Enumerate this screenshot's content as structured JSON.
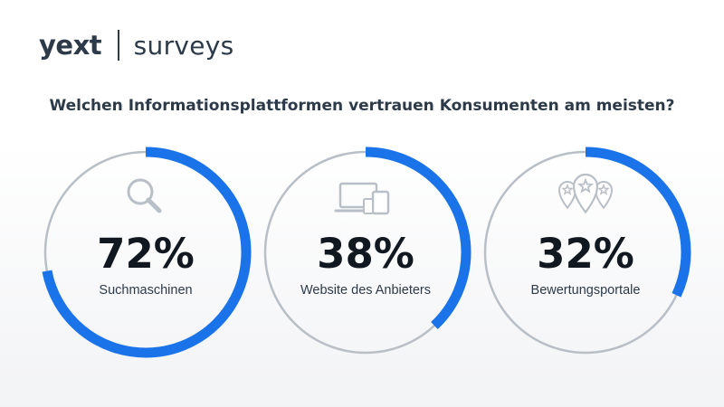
{
  "brand": {
    "logo": "yext",
    "product": "surveys"
  },
  "question": "Welchen Informationsplattformen vertrauen Konsumenten am meisten?",
  "colors": {
    "accent": "#1a73e8",
    "track": "#b9bfc7",
    "text": "#2c3a49"
  },
  "chart_data": {
    "type": "pie",
    "title": "Welchen Informationsplattformen vertrauen Konsumenten am meisten?",
    "categories": [
      "Suchmaschinen",
      "Website des Anbieters",
      "Bewertungsportale"
    ],
    "values": [
      72,
      38,
      32
    ],
    "value_labels": [
      "72%",
      "38%",
      "32%"
    ],
    "icons": [
      "magnifier-icon",
      "devices-icon",
      "rating-pins-icon"
    ],
    "unit": "%",
    "max": 100
  }
}
